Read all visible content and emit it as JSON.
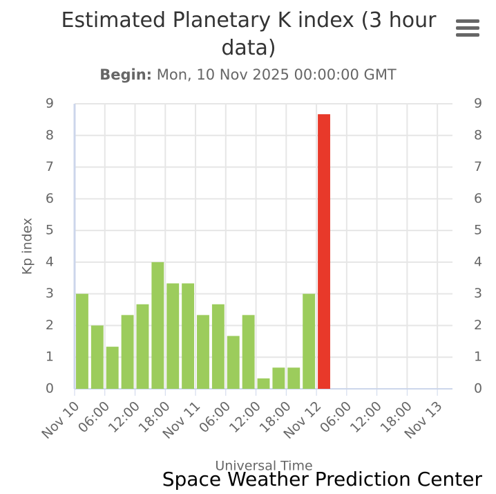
{
  "chart_data": {
    "type": "bar",
    "title": "Estimated Planetary K index (3 hour data)",
    "subtitle_label": "Begin:",
    "subtitle": "Mon, 10 Nov 2025 00:00:00 GMT",
    "x_label": "Universal Time",
    "y_label": "Kp index",
    "credit": "Space Weather Prediction Center",
    "x": [
      0,
      3,
      6,
      9,
      12,
      15,
      18,
      21,
      24,
      27,
      30,
      33,
      36,
      39,
      42,
      45,
      48
    ],
    "values": [
      3,
      2,
      1.33,
      2.33,
      2.67,
      4,
      3.33,
      3.33,
      2.33,
      2.67,
      1.67,
      2.33,
      0.33,
      0.67,
      0.67,
      3,
      8.67
    ],
    "colors": [
      "#9ccc5c",
      "#9ccc5c",
      "#9ccc5c",
      "#9ccc5c",
      "#9ccc5c",
      "#9ccc5c",
      "#9ccc5c",
      "#9ccc5c",
      "#9ccc5c",
      "#9ccc5c",
      "#9ccc5c",
      "#9ccc5c",
      "#9ccc5c",
      "#9ccc5c",
      "#9ccc5c",
      "#9ccc5c",
      "#e8392a"
    ],
    "bar_span": 3,
    "xlim": [
      0,
      75
    ],
    "xticks": [
      {
        "value": 0,
        "label": "Nov 10"
      },
      {
        "value": 6,
        "label": "06:00"
      },
      {
        "value": 12,
        "label": "12:00"
      },
      {
        "value": 18,
        "label": "18:00"
      },
      {
        "value": 24,
        "label": "Nov 11"
      },
      {
        "value": 30,
        "label": "06:00"
      },
      {
        "value": 36,
        "label": "12:00"
      },
      {
        "value": 42,
        "label": "18:00"
      },
      {
        "value": 48,
        "label": "Nov 12"
      },
      {
        "value": 54,
        "label": "06:00"
      },
      {
        "value": 60,
        "label": "12:00"
      },
      {
        "value": 66,
        "label": "18:00"
      },
      {
        "value": 72,
        "label": "Nov 13"
      }
    ],
    "ylim": [
      0,
      9
    ],
    "yticks": [
      0,
      1,
      2,
      3,
      4,
      5,
      6,
      7,
      8,
      9
    ],
    "y2lim": [
      0,
      9
    ],
    "y2ticks": [
      0,
      1,
      2,
      3,
      4,
      5,
      6,
      7,
      8,
      9
    ],
    "grid": true
  }
}
